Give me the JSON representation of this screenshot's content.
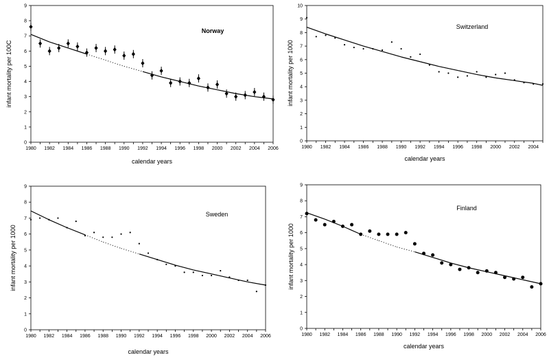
{
  "chart_data": [
    {
      "type": "scatter",
      "title": "Norway",
      "xlabel": "calendar years",
      "ylabel": "infant mortality per 100C",
      "xlim": [
        1980,
        2006
      ],
      "ylim": [
        0,
        9
      ],
      "xticks": [
        "1980",
        "1982",
        "1984",
        "1986",
        "1988",
        "1990",
        "1992",
        "1994",
        "1996",
        "1998",
        "2000",
        "2002",
        "2004",
        "2006"
      ],
      "yticks": [
        "0",
        "1",
        "2",
        "3",
        "4",
        "5",
        "6",
        "7",
        "8",
        "9"
      ],
      "marker": "diamond-errorbar",
      "points": [
        [
          1980,
          7.6
        ],
        [
          1981,
          6.5
        ],
        [
          1982,
          6.0
        ],
        [
          1983,
          6.2
        ],
        [
          1984,
          6.5
        ],
        [
          1985,
          6.3
        ],
        [
          1986,
          5.9
        ],
        [
          1987,
          6.2
        ],
        [
          1988,
          6.0
        ],
        [
          1989,
          6.1
        ],
        [
          1990,
          5.7
        ],
        [
          1991,
          5.8
        ],
        [
          1992,
          5.2
        ],
        [
          1993,
          4.4
        ],
        [
          1994,
          4.7
        ],
        [
          1995,
          3.9
        ],
        [
          1996,
          4.0
        ],
        [
          1997,
          3.9
        ],
        [
          1998,
          4.2
        ],
        [
          1999,
          3.6
        ],
        [
          2000,
          3.8
        ],
        [
          2001,
          3.2
        ],
        [
          2002,
          3.0
        ],
        [
          2003,
          3.1
        ],
        [
          2004,
          3.3
        ],
        [
          2005,
          3.0
        ],
        [
          2006,
          2.8
        ]
      ],
      "trend": [
        [
          1980,
          7.1
        ],
        [
          1982,
          6.6
        ],
        [
          1984,
          6.2
        ],
        [
          1986,
          5.8
        ],
        [
          1988,
          5.4
        ],
        [
          1990,
          5.0
        ],
        [
          1992,
          4.65
        ],
        [
          1994,
          4.3
        ],
        [
          1996,
          4.0
        ],
        [
          1998,
          3.7
        ],
        [
          2000,
          3.45
        ],
        [
          2002,
          3.2
        ],
        [
          2004,
          3.0
        ],
        [
          2006,
          2.85
        ]
      ],
      "dotted_range": [
        1986,
        1993
      ]
    },
    {
      "type": "scatter",
      "title": "Switzerland",
      "xlabel": "calendar years",
      "ylabel": "infant mortality per 1000",
      "xlim": [
        1980,
        2005
      ],
      "ylim": [
        0,
        10
      ],
      "xticks": [
        "1980",
        "1982",
        "1984",
        "1986",
        "1988",
        "1990",
        "1992",
        "1994",
        "1996",
        "1998",
        "2000",
        "2002",
        "2004"
      ],
      "yticks": [
        "0",
        "1",
        "2",
        "3",
        "4",
        "5",
        "6",
        "7",
        "8",
        "9",
        "10"
      ],
      "marker": "small-dot",
      "points": [
        [
          1980,
          9.1
        ],
        [
          1981,
          7.7
        ],
        [
          1982,
          7.8
        ],
        [
          1983,
          7.6
        ],
        [
          1984,
          7.1
        ],
        [
          1985,
          6.9
        ],
        [
          1986,
          6.8
        ],
        [
          1987,
          6.8
        ],
        [
          1988,
          6.7
        ],
        [
          1989,
          7.3
        ],
        [
          1990,
          6.8
        ],
        [
          1991,
          6.2
        ],
        [
          1992,
          6.4
        ],
        [
          1993,
          5.6
        ],
        [
          1994,
          5.1
        ],
        [
          1995,
          5.0
        ],
        [
          1996,
          4.7
        ],
        [
          1997,
          4.8
        ],
        [
          1998,
          5.1
        ],
        [
          1999,
          4.7
        ],
        [
          2000,
          4.9
        ],
        [
          2001,
          5.0
        ],
        [
          2002,
          4.5
        ],
        [
          2003,
          4.3
        ],
        [
          2004,
          4.2
        ],
        [
          2005,
          4.2
        ]
      ],
      "trend": [
        [
          1980,
          8.4
        ],
        [
          1982,
          7.9
        ],
        [
          1984,
          7.45
        ],
        [
          1986,
          7.0
        ],
        [
          1988,
          6.6
        ],
        [
          1990,
          6.2
        ],
        [
          1992,
          5.85
        ],
        [
          1994,
          5.5
        ],
        [
          1996,
          5.2
        ],
        [
          1998,
          4.9
        ],
        [
          2000,
          4.65
        ],
        [
          2002,
          4.45
        ],
        [
          2004,
          4.25
        ],
        [
          2005,
          4.1
        ]
      ],
      "dotted_range": null
    },
    {
      "type": "scatter",
      "title": "Sweden",
      "xlabel": "calendar years",
      "ylabel": "infant mortality per 1000",
      "xlim": [
        1980,
        2006
      ],
      "ylim": [
        0,
        9
      ],
      "xticks": [
        "1980",
        "1982",
        "1984",
        "1986",
        "1988",
        "1990",
        "1992",
        "1994",
        "1996",
        "1998",
        "2000",
        "2002",
        "2004",
        "2006"
      ],
      "yticks": [
        "0",
        "1",
        "2",
        "3",
        "4",
        "5",
        "6",
        "7",
        "8",
        "9"
      ],
      "marker": "small-dot",
      "points": [
        [
          1980,
          6.9
        ],
        [
          1981,
          7.0
        ],
        [
          1982,
          6.9
        ],
        [
          1983,
          7.0
        ],
        [
          1984,
          6.4
        ],
        [
          1985,
          6.8
        ],
        [
          1986,
          5.9
        ],
        [
          1987,
          6.1
        ],
        [
          1988,
          5.8
        ],
        [
          1989,
          5.8
        ],
        [
          1990,
          6.0
        ],
        [
          1991,
          6.1
        ],
        [
          1992,
          5.4
        ],
        [
          1993,
          4.8
        ],
        [
          1994,
          4.4
        ],
        [
          1995,
          4.1
        ],
        [
          1996,
          4.0
        ],
        [
          1997,
          3.6
        ],
        [
          1998,
          3.6
        ],
        [
          1999,
          3.4
        ],
        [
          2000,
          3.4
        ],
        [
          2001,
          3.7
        ],
        [
          2002,
          3.3
        ],
        [
          2003,
          3.1
        ],
        [
          2004,
          3.1
        ],
        [
          2005,
          2.4
        ],
        [
          2006,
          2.8
        ]
      ],
      "trend": [
        [
          1980,
          7.45
        ],
        [
          1982,
          6.9
        ],
        [
          1984,
          6.4
        ],
        [
          1986,
          5.95
        ],
        [
          1988,
          5.5
        ],
        [
          1990,
          5.1
        ],
        [
          1992,
          4.75
        ],
        [
          1994,
          4.4
        ],
        [
          1996,
          4.05
        ],
        [
          1998,
          3.75
        ],
        [
          2000,
          3.5
        ],
        [
          2002,
          3.25
        ],
        [
          2004,
          3.0
        ],
        [
          2006,
          2.8
        ]
      ],
      "dotted_range": [
        1986,
        1993
      ]
    },
    {
      "type": "scatter",
      "title": "Finland",
      "xlabel": "calendar years",
      "ylabel": "infant mortality per 1000",
      "xlim": [
        1980,
        2006
      ],
      "ylim": [
        0,
        9
      ],
      "xticks": [
        "1980",
        "1982",
        "1984",
        "1986",
        "1988",
        "1990",
        "1992",
        "1994",
        "1996",
        "1998",
        "2000",
        "2002",
        "2004",
        "2006"
      ],
      "yticks": [
        "0",
        "1",
        "2",
        "3",
        "4",
        "5",
        "6",
        "7",
        "8",
        "9"
      ],
      "marker": "large-dot",
      "points": [
        [
          1980,
          7.2
        ],
        [
          1981,
          6.8
        ],
        [
          1982,
          6.5
        ],
        [
          1983,
          6.7
        ],
        [
          1984,
          6.4
        ],
        [
          1985,
          6.5
        ],
        [
          1986,
          5.9
        ],
        [
          1987,
          6.1
        ],
        [
          1988,
          5.9
        ],
        [
          1989,
          5.9
        ],
        [
          1990,
          5.9
        ],
        [
          1991,
          6.0
        ],
        [
          1992,
          5.3
        ],
        [
          1993,
          4.7
        ],
        [
          1994,
          4.6
        ],
        [
          1995,
          4.1
        ],
        [
          1996,
          4.0
        ],
        [
          1997,
          3.7
        ],
        [
          1998,
          3.8
        ],
        [
          1999,
          3.5
        ],
        [
          2000,
          3.6
        ],
        [
          2001,
          3.5
        ],
        [
          2002,
          3.2
        ],
        [
          2003,
          3.1
        ],
        [
          2004,
          3.2
        ],
        [
          2005,
          2.6
        ],
        [
          2006,
          2.8
        ]
      ],
      "trend": [
        [
          1980,
          7.25
        ],
        [
          1982,
          6.85
        ],
        [
          1984,
          6.4
        ],
        [
          1986,
          5.9
        ],
        [
          1988,
          5.5
        ],
        [
          1990,
          5.1
        ],
        [
          1992,
          4.8
        ],
        [
          1994,
          4.45
        ],
        [
          1996,
          4.1
        ],
        [
          1998,
          3.8
        ],
        [
          2000,
          3.55
        ],
        [
          2002,
          3.3
        ],
        [
          2004,
          3.05
        ],
        [
          2006,
          2.8
        ]
      ],
      "dotted_range": [
        1986,
        1993
      ]
    }
  ]
}
